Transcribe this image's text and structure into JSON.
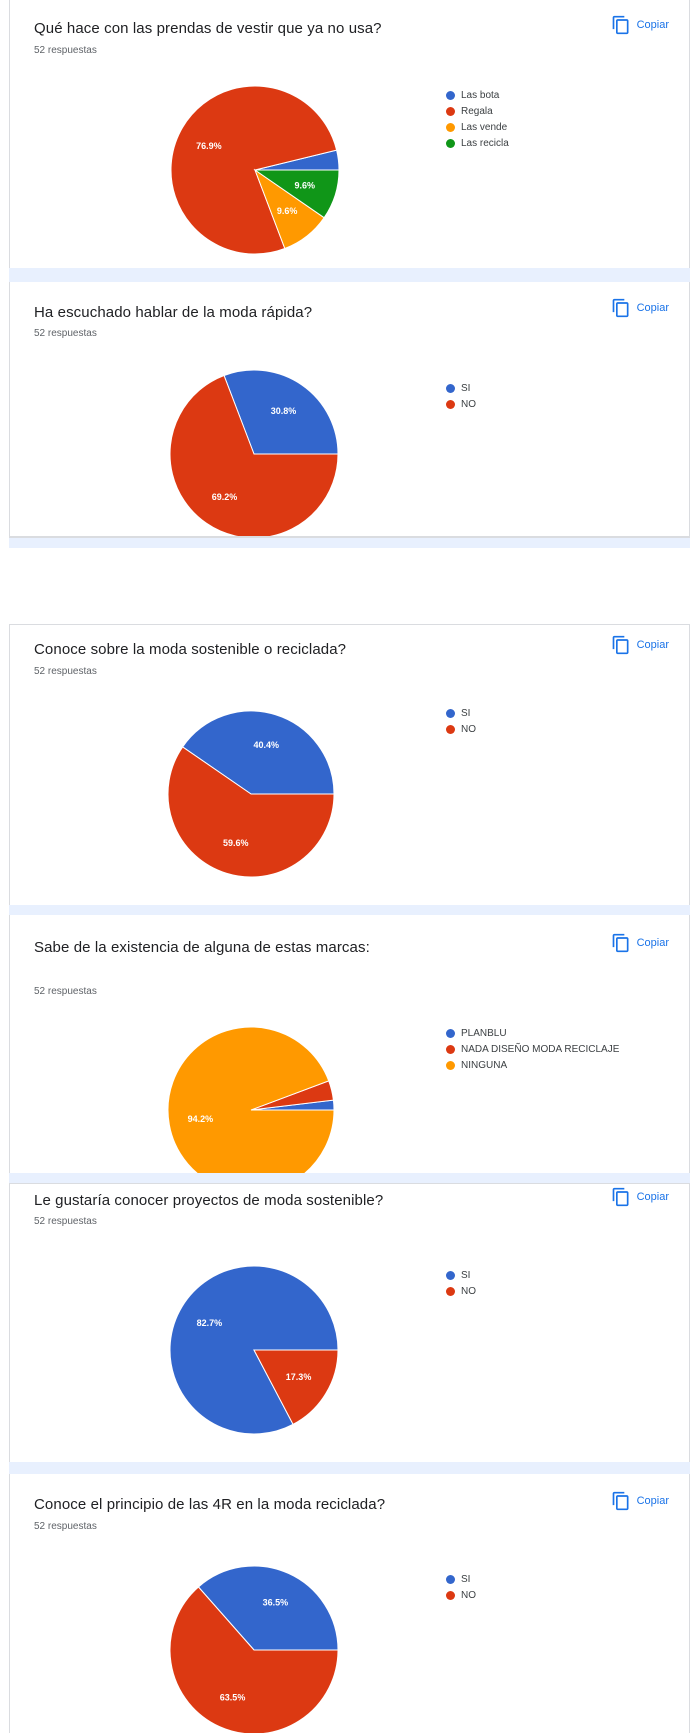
{
  "copy_label": "Copiar",
  "colors": {
    "blue": "#3366cc",
    "red": "#dc3912",
    "orange": "#ff9900",
    "green": "#109618"
  },
  "chart_data": [
    {
      "type": "pie",
      "title": "Qué hace con las prendas de vestir que ya no usa?",
      "subtitle": "52 respuestas",
      "slices": [
        {
          "label": "Las bota",
          "value": 3.8,
          "color": "#3366cc",
          "display": ""
        },
        {
          "label": "Regala",
          "value": 76.9,
          "color": "#dc3912",
          "display": "76.9%"
        },
        {
          "label": "Las vende",
          "value": 9.6,
          "color": "#ff9900",
          "display": "9.6%"
        },
        {
          "label": "Las recicla",
          "value": 9.6,
          "color": "#109618",
          "display": "9.6%"
        }
      ]
    },
    {
      "type": "pie",
      "title": "Ha escuchado hablar de la moda rápida?",
      "subtitle": "52 respuestas",
      "slices": [
        {
          "label": "SI",
          "value": 30.8,
          "color": "#3366cc",
          "display": "30.8%"
        },
        {
          "label": "NO",
          "value": 69.2,
          "color": "#dc3912",
          "display": "69.2%"
        }
      ]
    },
    {
      "type": "pie",
      "title": "Conoce sobre la moda sostenible o reciclada?",
      "subtitle": "52 respuestas",
      "slices": [
        {
          "label": "SI",
          "value": 40.4,
          "color": "#3366cc",
          "display": "40.4%"
        },
        {
          "label": "NO",
          "value": 59.6,
          "color": "#dc3912",
          "display": "59.6%"
        }
      ]
    },
    {
      "type": "pie",
      "title": "Sabe de la existencia de alguna de estas marcas:",
      "subtitle": "52 respuestas",
      "slices": [
        {
          "label": "PLANBLU",
          "value": 1.9,
          "color": "#3366cc",
          "display": ""
        },
        {
          "label": "NADA DISEÑO MODA RECICLAJE",
          "value": 3.8,
          "color": "#dc3912",
          "display": ""
        },
        {
          "label": "NINGUNA",
          "value": 94.2,
          "color": "#ff9900",
          "display": "94.2%"
        }
      ]
    },
    {
      "type": "pie",
      "title": "Le gustaría conocer proyectos de moda sostenible?",
      "subtitle": "52 respuestas",
      "slices": [
        {
          "label": "SI",
          "value": 82.7,
          "color": "#3366cc",
          "display": "82.7%"
        },
        {
          "label": "NO",
          "value": 17.3,
          "color": "#dc3912",
          "display": "17.3%"
        }
      ]
    },
    {
      "type": "pie",
      "title": "Conoce el principio de las 4R en la moda reciclada?",
      "subtitle": "52 respuestas",
      "slices": [
        {
          "label": "SI",
          "value": 36.5,
          "color": "#3366cc",
          "display": "36.5%"
        },
        {
          "label": "NO",
          "value": 63.5,
          "color": "#dc3912",
          "display": "63.5%"
        }
      ]
    }
  ]
}
